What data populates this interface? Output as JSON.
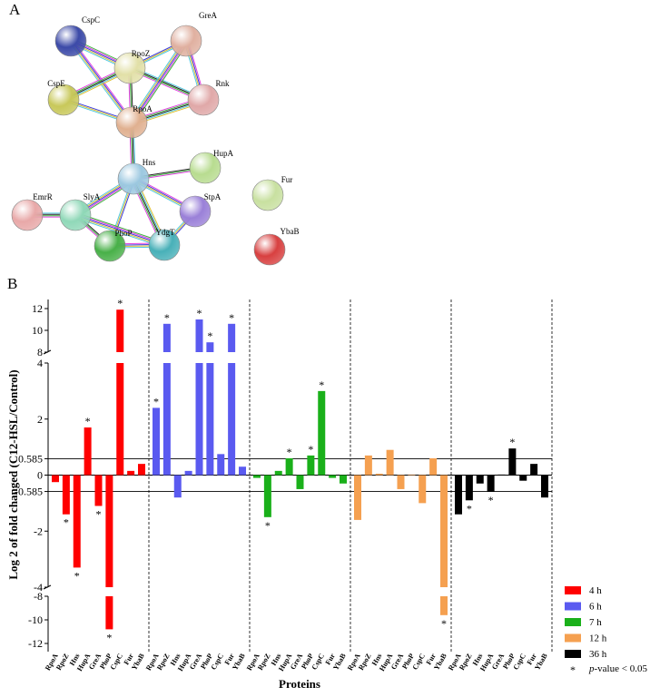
{
  "panel_labels": [
    "A",
    "B"
  ],
  "network": {
    "nodes": [
      "CspC",
      "RpoZ",
      "GreA",
      "CspE",
      "Rnk",
      "RpoA",
      "Hns",
      "HupA",
      "Fur",
      "EmrR",
      "SlyA",
      "StpA",
      "PhoP",
      "YdgT",
      "YbaB"
    ]
  },
  "chart_data": {
    "type": "bar",
    "ylabel": "Log 2 of fold changed (C12-HSL/Control)",
    "xlabel": "Proteins",
    "categories": [
      "RpoA",
      "RpoZ",
      "Hns",
      "HupA",
      "GreA",
      "PhoP",
      "CspC",
      "Fur",
      "YbaB"
    ],
    "series": [
      {
        "name": "4 h",
        "color": "#ff0000",
        "values": [
          -0.25,
          -1.4,
          -3.3,
          1.7,
          -1.1,
          -10.8,
          11.9,
          0.15,
          0.4
        ],
        "significant": [
          false,
          true,
          true,
          true,
          true,
          true,
          true,
          false,
          false
        ]
      },
      {
        "name": "6 h",
        "color": "#5a5af0",
        "values": [
          2.4,
          10.6,
          -0.8,
          0.15,
          11.0,
          8.9,
          0.75,
          10.6,
          0.3
        ],
        "significant": [
          true,
          true,
          false,
          false,
          true,
          true,
          false,
          true,
          false
        ]
      },
      {
        "name": "7 h",
        "color": "#1ab01a",
        "values": [
          -0.1,
          -1.5,
          0.15,
          0.6,
          -0.5,
          0.7,
          3.0,
          -0.1,
          -0.3
        ],
        "significant": [
          false,
          true,
          false,
          true,
          false,
          true,
          true,
          false,
          false
        ]
      },
      {
        "name": "12 h",
        "color": "#f5a050",
        "values": [
          -1.6,
          0.7,
          0.05,
          0.9,
          -0.5,
          0.02,
          -1.0,
          0.6,
          -9.6
        ],
        "significant": [
          false,
          false,
          false,
          false,
          false,
          false,
          false,
          false,
          true
        ]
      },
      {
        "name": "36 h",
        "color": "#000000",
        "values": [
          -1.4,
          -0.9,
          -0.3,
          -0.6,
          0.02,
          0.95,
          -0.2,
          0.4,
          -0.8
        ],
        "significant": [
          false,
          true,
          false,
          true,
          false,
          true,
          false,
          false,
          false
        ]
      }
    ],
    "ylim": [
      -12,
      12
    ],
    "axis_breaks": [
      [
        -8,
        -4
      ],
      [
        4,
        8
      ]
    ],
    "yticks": [
      12,
      10,
      8,
      4,
      2,
      0.585,
      0,
      -0.585,
      -2,
      -4,
      -8,
      -10,
      -12
    ],
    "reference_lines": [
      0.585,
      0,
      -0.585
    ],
    "significance_marker": "*",
    "significance_label": {
      "italic": "p",
      "text": "-value < 0.05"
    }
  }
}
